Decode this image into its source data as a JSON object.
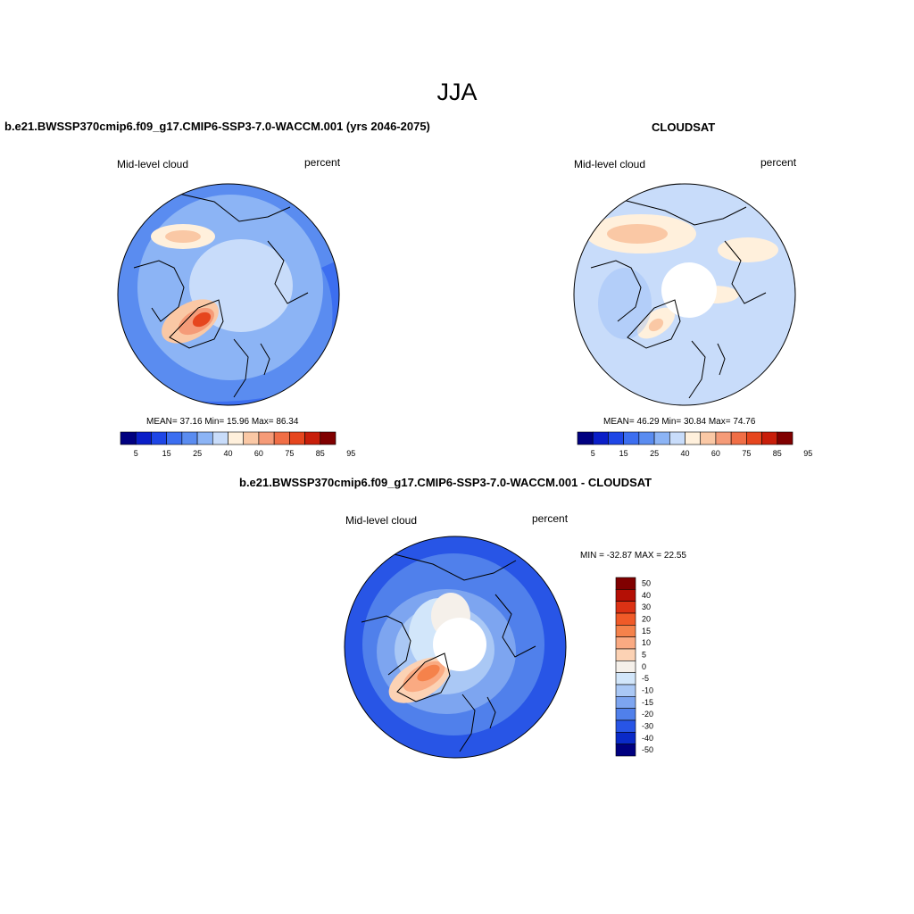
{
  "season": "JJA",
  "panels": [
    {
      "title": "b.e21.BWSSP370cmip6.f09_g17.CMIP6-SSP3-7.0-WACCM.001 (yrs 2046-2075)",
      "left_label": "Mid-level cloud",
      "right_label": "percent",
      "stats": "MEAN=  37.16  Min=  15.96  Max=  86.34",
      "colorbar_labels": [
        "5",
        "15",
        "25",
        "40",
        "60",
        "75",
        "85",
        "95"
      ]
    },
    {
      "title": "CLOUDSAT",
      "left_label": "Mid-level cloud",
      "right_label": "percent",
      "stats": "MEAN=  46.29  Min=  30.84  Max=  74.76",
      "colorbar_labels": [
        "5",
        "15",
        "25",
        "40",
        "60",
        "75",
        "85",
        "95"
      ]
    },
    {
      "title": "b.e21.BWSSP370cmip6.f09_g17.CMIP6-SSP3-7.0-WACCM.001 - CLOUDSAT",
      "left_label": "Mid-level cloud",
      "right_label": "percent",
      "stats": "MIN = -32.87 MAX =  22.55",
      "colorbar_labels": [
        "50",
        "40",
        "30",
        "20",
        "15",
        "10",
        "5",
        "0",
        "-5",
        "-10",
        "-15",
        "-20",
        "-30",
        "-40",
        "-50"
      ]
    }
  ],
  "colors": {
    "abs_scale": [
      "#000080",
      "#0a1ec8",
      "#1e46e6",
      "#3c6ef0",
      "#5a8cf0",
      "#8cb4f5",
      "#c8dcfa",
      "#fff0dc",
      "#fac8a5",
      "#f59b78",
      "#f06e46",
      "#e6461e",
      "#c81e0a",
      "#800000"
    ],
    "diff_scale": [
      "#800000",
      "#b40f05",
      "#dc3214",
      "#f05a28",
      "#f5824b",
      "#faaa82",
      "#fcd2b4",
      "#f5f0ea",
      "#d2e6fa",
      "#aac8f5",
      "#7da5f0",
      "#5080eb",
      "#2855e6",
      "#0a2ac8",
      "#000080"
    ]
  }
}
